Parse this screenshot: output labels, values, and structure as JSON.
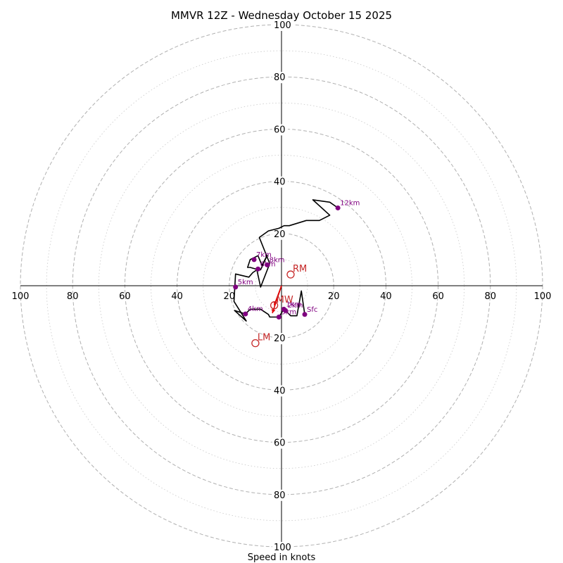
{
  "chart_data": {
    "type": "scatter",
    "subtype": "hodograph",
    "title": "MMVR 12Z - Wednesday October 15 2025",
    "xlabel": "Speed in knots",
    "ylabel": "",
    "xlim": [
      -100,
      100
    ],
    "ylim": [
      -100,
      100
    ],
    "rings": {
      "major": [
        20,
        40,
        60,
        80,
        100
      ],
      "minor": [
        10,
        30,
        50,
        70,
        90
      ]
    },
    "tick_labels": {
      "right": [
        "20",
        "40",
        "60",
        "80",
        "100"
      ],
      "left": [
        "20",
        "40",
        "60",
        "80",
        "100"
      ],
      "up": [
        "20",
        "40",
        "60",
        "80",
        "100"
      ],
      "down": [
        "20",
        "40",
        "60",
        "80",
        "100"
      ]
    },
    "grid": true,
    "colors": {
      "trace": "#000000",
      "height_marker": "#800080",
      "storm_marker": "#c62828",
      "ring": "#b0b0b0"
    },
    "trace": [
      [
        8.9,
        -11.0
      ],
      [
        7.6,
        -2.0
      ],
      [
        5.9,
        -11.5
      ],
      [
        3.5,
        -11.5
      ],
      [
        1.5,
        -9.5
      ],
      [
        0.9,
        -9.0
      ],
      [
        -1.0,
        -12.0
      ],
      [
        -4.5,
        -12.0
      ],
      [
        -5.0,
        -11.0
      ],
      [
        -8.0,
        -9.0
      ],
      [
        -12.0,
        -9.0
      ],
      [
        -13.8,
        -10.8
      ],
      [
        -18.0,
        -9.5
      ],
      [
        -13.5,
        -13.5
      ],
      [
        -18.2,
        -6.0
      ],
      [
        -17.6,
        4.5
      ],
      [
        -12.5,
        3.3
      ],
      [
        -11.0,
        5.0
      ],
      [
        -9.0,
        6.4
      ],
      [
        -8.0,
        6.1
      ],
      [
        -5.5,
        11.6
      ],
      [
        -7.5,
        7.8
      ],
      [
        -9.0,
        11.5
      ],
      [
        -12.0,
        10.0
      ],
      [
        -13.0,
        7.0
      ],
      [
        -12.0,
        7.0
      ],
      [
        -9.5,
        6.3
      ],
      [
        -8.0,
        -0.5
      ],
      [
        -4.5,
        8.5
      ],
      [
        -8.5,
        18.5
      ],
      [
        -5.0,
        21.0
      ],
      [
        -1.0,
        22.0
      ],
      [
        1.0,
        23.0
      ],
      [
        3.0,
        23.0
      ],
      [
        9.5,
        25.0
      ],
      [
        14.5,
        25.0
      ],
      [
        18.5,
        27.0
      ],
      [
        12.0,
        32.9
      ],
      [
        18.5,
        32.0
      ],
      [
        21.6,
        29.8
      ]
    ],
    "height_markers": [
      {
        "label": "Sfc",
        "u": 8.9,
        "v": -11.0
      },
      {
        "label": "1km",
        "u": 0.9,
        "v": -9.0
      },
      {
        "label": "2km",
        "u": 1.5,
        "v": -9.5
      },
      {
        "label": "3km",
        "u": -1.0,
        "v": -12.0
      },
      {
        "label": "4km",
        "u": -13.8,
        "v": -10.8
      },
      {
        "label": "5km",
        "u": -17.6,
        "v": -0.5
      },
      {
        "label": "6km",
        "u": -9.0,
        "v": 6.4
      },
      {
        "label": "7km",
        "u": -10.5,
        "v": 10.0
      },
      {
        "label": "8km",
        "u": -5.5,
        "v": 8.0
      },
      {
        "label": "12km",
        "u": 21.6,
        "v": 29.8
      }
    ],
    "storm_motions": [
      {
        "label": "RM",
        "u": 3.5,
        "v": 4.3
      },
      {
        "label": "LM",
        "u": -10.0,
        "v": -22.0
      },
      {
        "label": "MW",
        "u": -2.8,
        "v": -7.5
      }
    ],
    "vectors": [
      {
        "from": [
          0,
          0
        ],
        "to": [
          -2.8,
          -7.5
        ],
        "color": "#e00000"
      },
      {
        "from": [
          0,
          0
        ],
        "to": [
          -3.5,
          -10.5
        ],
        "color": "#e00000"
      }
    ]
  }
}
